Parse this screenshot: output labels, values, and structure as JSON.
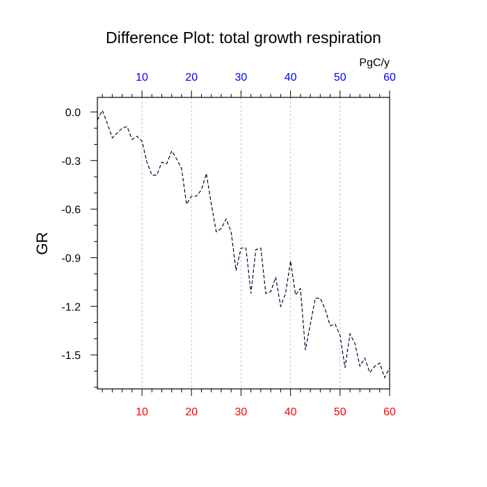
{
  "chart_data": {
    "type": "line",
    "title": "Difference Plot: total growth respiration",
    "units_label": "PgC/y",
    "ylabel": "GR",
    "xlabel": "",
    "xlim": [
      1,
      60
    ],
    "ylim": [
      -1.71,
      0.09
    ],
    "x_ticks": [
      10,
      20,
      30,
      40,
      50,
      60
    ],
    "x_tick_labels": [
      "10",
      "20",
      "30",
      "40",
      "50",
      "60"
    ],
    "y_ticks": [
      0.0,
      -0.3,
      -0.6,
      -0.9,
      -1.2,
      -1.5
    ],
    "y_tick_labels": [
      "0.0",
      "-0.3",
      "-0.6",
      "-0.9",
      "-1.2",
      "-1.5"
    ],
    "x_grid": true,
    "y_grid": false,
    "top_axis_color": "#0000ff",
    "bottom_axis_color": "#ff0000",
    "series": [
      {
        "color": "#0000ff",
        "dash": "dashed",
        "x": [
          1,
          2,
          3,
          4,
          5,
          6,
          7,
          8,
          9,
          10,
          11,
          12,
          13,
          14,
          15,
          16,
          17,
          18,
          19,
          20,
          21,
          22,
          23,
          24,
          25,
          26,
          27,
          28,
          29,
          30,
          31,
          32,
          33,
          34,
          35,
          36,
          37,
          38,
          39,
          40,
          41,
          42,
          43,
          44,
          45,
          46,
          47,
          48,
          49,
          50,
          51,
          52,
          53,
          54,
          55,
          56,
          57,
          58,
          59,
          60
        ],
        "values": [
          -0.05,
          0.01,
          -0.07,
          -0.16,
          -0.13,
          -0.1,
          -0.09,
          -0.17,
          -0.15,
          -0.18,
          -0.31,
          -0.39,
          -0.39,
          -0.31,
          -0.32,
          -0.24,
          -0.29,
          -0.35,
          -0.57,
          -0.52,
          -0.52,
          -0.48,
          -0.38,
          -0.57,
          -0.74,
          -0.72,
          -0.66,
          -0.74,
          -0.98,
          -0.84,
          -0.84,
          -1.12,
          -0.85,
          -0.84,
          -1.12,
          -1.11,
          -1.02,
          -1.2,
          -1.12,
          -0.92,
          -1.13,
          -1.09,
          -1.47,
          -1.31,
          -1.15,
          -1.15,
          -1.22,
          -1.32,
          -1.31,
          -1.38,
          -1.58,
          -1.37,
          -1.43,
          -1.57,
          -1.52,
          -1.61,
          -1.57,
          -1.55,
          -1.64,
          -1.58
        ]
      },
      {
        "color": "#000000",
        "dash": "dashed",
        "x": [
          1,
          2,
          3,
          4,
          5,
          6,
          7,
          8,
          9,
          10,
          11,
          12,
          13,
          14,
          15,
          16,
          17,
          18,
          19,
          20,
          21,
          22,
          23,
          24,
          25,
          26,
          27,
          28,
          29,
          30,
          31,
          32,
          33,
          34,
          35,
          36,
          37,
          38,
          39,
          40,
          41,
          42,
          43,
          44,
          45,
          46,
          47,
          48,
          49,
          50,
          51,
          52,
          53,
          54,
          55,
          56,
          57,
          58,
          59,
          60
        ],
        "values": [
          -0.05,
          0.01,
          -0.07,
          -0.16,
          -0.13,
          -0.1,
          -0.09,
          -0.17,
          -0.15,
          -0.18,
          -0.31,
          -0.39,
          -0.39,
          -0.31,
          -0.32,
          -0.24,
          -0.29,
          -0.35,
          -0.57,
          -0.52,
          -0.52,
          -0.48,
          -0.38,
          -0.57,
          -0.74,
          -0.72,
          -0.66,
          -0.74,
          -0.98,
          -0.84,
          -0.84,
          -1.12,
          -0.85,
          -0.84,
          -1.12,
          -1.11,
          -1.02,
          -1.2,
          -1.12,
          -0.92,
          -1.13,
          -1.09,
          -1.47,
          -1.31,
          -1.15,
          -1.15,
          -1.22,
          -1.32,
          -1.31,
          -1.38,
          -1.58,
          -1.37,
          -1.43,
          -1.57,
          -1.52,
          -1.61,
          -1.57,
          -1.55,
          -1.64,
          -1.58
        ]
      }
    ]
  }
}
